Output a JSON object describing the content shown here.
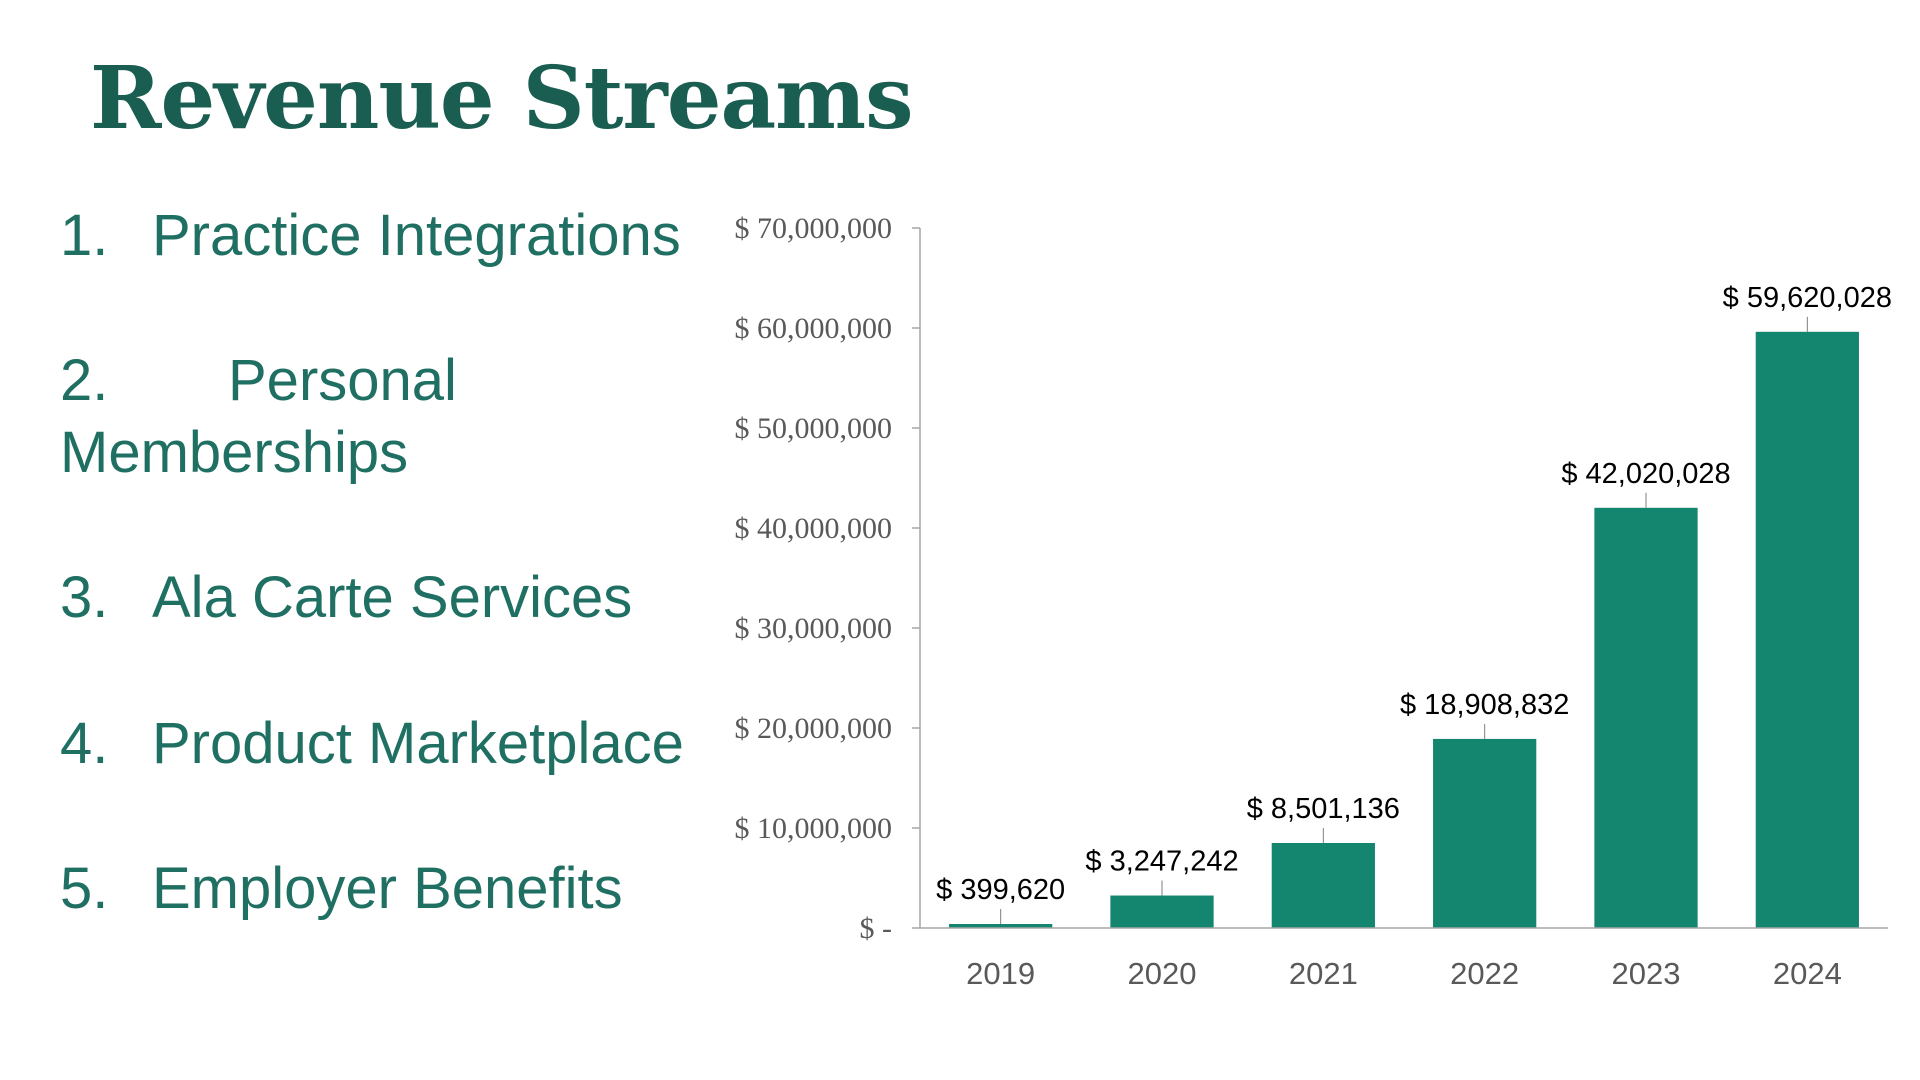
{
  "slide": {
    "title": "Revenue Streams",
    "streams": [
      {
        "number": "1.",
        "label": "Practice Integrations"
      },
      {
        "number": "2.",
        "label": "Personal",
        "label_cont": "Memberships"
      },
      {
        "number": "3.",
        "label": "Ala Carte Services"
      },
      {
        "number": "4.",
        "label": "Product Marketplace"
      },
      {
        "number": "5.",
        "label": "Employer Benefits"
      }
    ]
  },
  "colors": {
    "title": "#1a5e52",
    "text": "#1f6f62",
    "bar": "#14856f",
    "axis": "#a6a6a6",
    "leader": "#7f7f7f"
  },
  "chart_data": {
    "type": "bar",
    "categories": [
      "2019",
      "2020",
      "2021",
      "2022",
      "2023",
      "2024"
    ],
    "values": [
      399620,
      3247242,
      8501136,
      18908832,
      42020028,
      59620028
    ],
    "data_labels": [
      "$ 399,620",
      "$ 3,247,242",
      "$ 8,501,136",
      "$ 18,908,832",
      "$ 42,020,028",
      "$ 59,620,028"
    ],
    "y_ticks": [
      0,
      10000000,
      20000000,
      30000000,
      40000000,
      50000000,
      60000000,
      70000000
    ],
    "y_tick_labels": [
      "$ -",
      "$ 10,000,000",
      "$ 20,000,000",
      "$ 30,000,000",
      "$ 40,000,000",
      "$ 50,000,000",
      "$ 60,000,000",
      "$ 70,000,000"
    ],
    "ylim": [
      0,
      70000000
    ],
    "xlabel": "",
    "ylabel": "",
    "grid": false,
    "legend": "none"
  }
}
